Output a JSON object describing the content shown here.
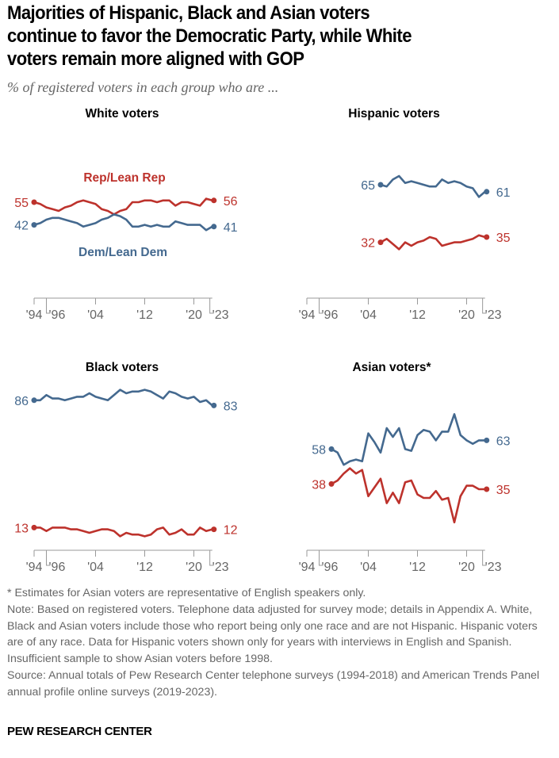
{
  "title_lines": [
    "Majorities of Hispanic, Black and Asian voters",
    "continue to favor the Democratic Party, while White",
    "voters remain more aligned with GOP"
  ],
  "subtitle": "% of registered voters in each group who are ...",
  "colors": {
    "rep": "#bd322c",
    "dem": "#44698f",
    "axis": "#999999",
    "tick_label": "#666666"
  },
  "chart_data": [
    {
      "type": "line",
      "title": "White voters",
      "ylim": [
        0,
        100
      ],
      "xlim": [
        1994,
        2023
      ],
      "grid": false,
      "x_ticks": [
        "'94",
        "'96",
        "'04",
        "'12",
        "'20",
        "'23"
      ],
      "series_labels": {
        "rep": "Rep/Lean Rep",
        "dem": "Dem/Lean Dem"
      },
      "series": [
        {
          "key": "rep",
          "name": "Rep/Lean Rep",
          "start_year": 1994,
          "start_label": "55",
          "end_label": "56",
          "values": [
            55,
            54,
            52,
            51,
            50,
            52,
            53,
            55,
            56,
            55,
            54,
            51,
            50,
            48,
            50,
            51,
            55,
            55,
            56,
            56,
            55,
            56,
            56,
            53,
            55,
            55,
            54,
            53,
            57,
            56
          ]
        },
        {
          "key": "dem",
          "name": "Dem/Lean Dem",
          "start_year": 1994,
          "start_label": "42",
          "end_label": "41",
          "values": [
            42,
            43,
            45,
            46,
            46,
            45,
            44,
            43,
            41,
            42,
            43,
            45,
            46,
            48,
            47,
            45,
            41,
            41,
            42,
            41,
            42,
            41,
            41,
            44,
            43,
            42,
            42,
            42,
            39,
            41
          ]
        }
      ]
    },
    {
      "type": "line",
      "title": "Hispanic voters",
      "ylim": [
        0,
        100
      ],
      "xlim": [
        1994,
        2023
      ],
      "grid": false,
      "x_ticks": [
        "'94",
        "'96",
        "'04",
        "'12",
        "'20",
        "'23"
      ],
      "series": [
        {
          "key": "dem",
          "start_year": 2006,
          "start_label": "65",
          "end_label": "61",
          "values": [
            65,
            64,
            68,
            70,
            66,
            67,
            66,
            65,
            64,
            64,
            68,
            66,
            67,
            66,
            64,
            63,
            58,
            61
          ]
        },
        {
          "key": "rep",
          "start_year": 2006,
          "start_label": "32",
          "end_label": "35",
          "values": [
            32,
            34,
            31,
            28,
            32,
            30,
            32,
            33,
            35,
            34,
            30,
            31,
            32,
            32,
            33,
            34,
            36,
            35
          ]
        }
      ]
    },
    {
      "type": "line",
      "title": "Black voters",
      "ylim": [
        0,
        100
      ],
      "xlim": [
        1994,
        2023
      ],
      "grid": false,
      "x_ticks": [
        "'94",
        "'96",
        "'04",
        "'12",
        "'20",
        "'23"
      ],
      "series": [
        {
          "key": "dem",
          "start_year": 1994,
          "start_label": "86",
          "end_label": "83",
          "values": [
            86,
            86,
            89,
            87,
            87,
            86,
            87,
            88,
            88,
            90,
            88,
            87,
            86,
            89,
            92,
            90,
            91,
            91,
            92,
            91,
            89,
            87,
            91,
            90,
            88,
            87,
            88,
            85,
            86,
            83
          ]
        },
        {
          "key": "rep",
          "start_year": 1994,
          "start_label": "13",
          "end_label": "12",
          "values": [
            13,
            13,
            11,
            13,
            13,
            13,
            12,
            12,
            11,
            10,
            11,
            12,
            12,
            11,
            8,
            10,
            9,
            9,
            8,
            9,
            12,
            13,
            9,
            10,
            12,
            9,
            9,
            13,
            11,
            12
          ]
        }
      ]
    },
    {
      "type": "line",
      "title": "Asian voters*",
      "ylim": [
        0,
        100
      ],
      "xlim": [
        1994,
        2023
      ],
      "grid": false,
      "x_ticks": [
        "'94",
        "'96",
        "'04",
        "'12",
        "'20",
        "'23"
      ],
      "series": [
        {
          "key": "dem",
          "start_year": 1998,
          "start_label": "58",
          "end_label": "63",
          "values": [
            58,
            56,
            49,
            51,
            52,
            51,
            67,
            62,
            56,
            70,
            65,
            70,
            58,
            57,
            66,
            69,
            68,
            63,
            68,
            68,
            78,
            66,
            63,
            61,
            63,
            63
          ]
        },
        {
          "key": "rep",
          "start_year": 1998,
          "start_label": "38",
          "end_label": "35",
          "values": [
            38,
            40,
            44,
            47,
            44,
            46,
            31,
            36,
            41,
            27,
            33,
            27,
            39,
            40,
            32,
            30,
            30,
            34,
            29,
            30,
            16,
            31,
            37,
            37,
            35,
            35
          ]
        }
      ]
    }
  ],
  "notes": [
    "* Estimates for Asian voters are representative of English speakers only.",
    "Note: Based on registered voters. Telephone data adjusted for survey mode; details in Appendix A. White, Black and Asian voters include those who report being only one race and are not Hispanic. Hispanic voters are of any race. Data for Hispanic voters shown only for years with interviews in English and Spanish. Insufficient sample to show Asian voters before 1998.",
    "Source: Annual totals of Pew Research Center telephone surveys (1994-2018) and American Trends Panel annual profile online surveys (2019-2023)."
  ],
  "brand": "PEW RESEARCH CENTER"
}
